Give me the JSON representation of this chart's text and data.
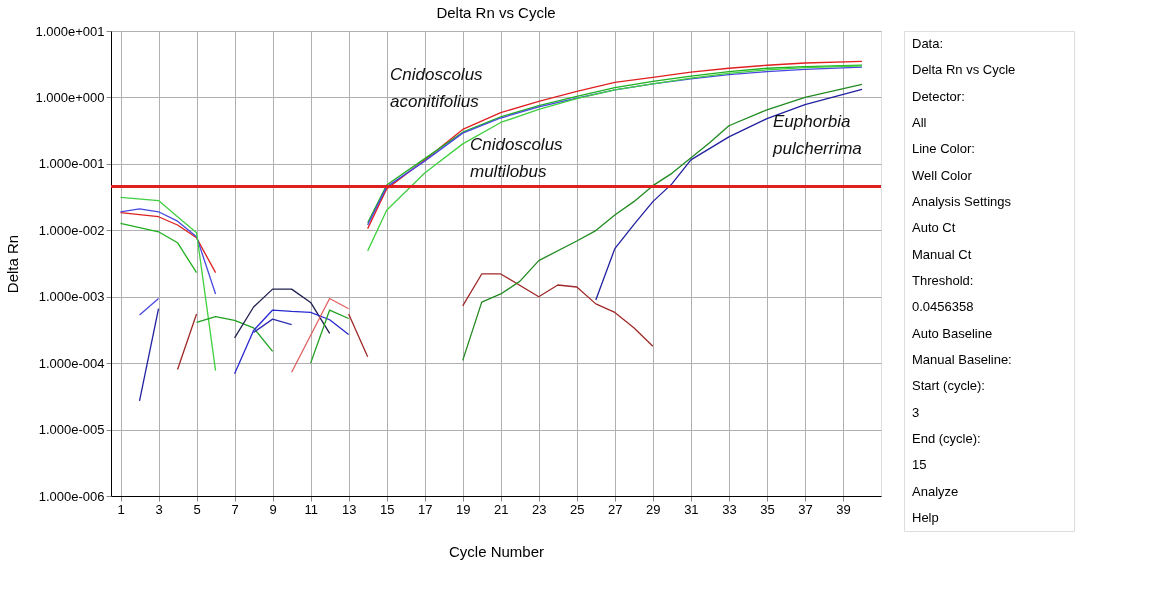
{
  "chart_data": [
    {
      "type": "line",
      "title": "Delta Rn vs Cycle",
      "xlabel": "Cycle Number",
      "ylabel": "Delta Rn",
      "log": "y",
      "grid": true,
      "legend": false,
      "marker": "none",
      "line_style": "solid",
      "xlim": [
        0.5,
        41
      ],
      "xticks": [
        1,
        3,
        5,
        7,
        9,
        11,
        13,
        15,
        17,
        19,
        21,
        23,
        25,
        27,
        29,
        31,
        33,
        35,
        37,
        39
      ],
      "ylim": [
        1e-06,
        10
      ],
      "yticks": [
        {
          "value": 10,
          "label": "1.000e+001"
        },
        {
          "value": 1,
          "label": "1.000e+000"
        },
        {
          "value": 0.1,
          "label": "1.000e-001"
        },
        {
          "value": 0.01,
          "label": "1.000e-002"
        },
        {
          "value": 0.001,
          "label": "1.000e-003"
        },
        {
          "value": 0.0001,
          "label": "1.000e-004"
        },
        {
          "value": 1e-05,
          "label": "1.000e-005"
        },
        {
          "value": 1e-06,
          "label": "1.000e-006"
        }
      ],
      "ref_lines": [
        {
          "axis": "y",
          "value": 0.0456358,
          "color": "#e02020"
        }
      ],
      "annotations": [
        "Cnidoscolus\naconitifolius",
        "Cnidoscolus\nmultilobus",
        "Euphorbia\npulcherrima"
      ],
      "series": [
        {
          "color": "#e02020",
          "x": [
            1,
            3,
            4,
            5,
            6
          ],
          "values": [
            0.0184,
            0.016,
            0.012,
            0.0077,
            0.0023
          ]
        },
        {
          "color": "#4848e0",
          "x": [
            1,
            2,
            3,
            4,
            5,
            6
          ],
          "values": [
            0.019,
            0.021,
            0.019,
            0.0137,
            0.008,
            0.0011
          ]
        },
        {
          "color": "#40d040",
          "x": [
            1,
            3,
            4,
            5,
            6
          ],
          "values": [
            0.0313,
            0.028,
            0.016,
            0.0092,
            7.7e-05
          ]
        },
        {
          "color": "#20b020",
          "x": [
            1,
            3,
            4,
            5
          ],
          "values": [
            0.0127,
            0.0095,
            0.0065,
            0.0023
          ]
        },
        {
          "color": "#4848e0",
          "x": [
            2,
            3
          ],
          "values": [
            0.00053,
            0.00094
          ]
        },
        {
          "color": "#2020a0",
          "x": [
            2,
            3
          ],
          "values": [
            2.7e-05,
            0.00066
          ]
        },
        {
          "color": "#a02828",
          "x": [
            4,
            5
          ],
          "values": [
            8e-05,
            0.00055
          ]
        },
        {
          "color": "#20a020",
          "x": [
            5,
            6,
            7,
            8,
            9
          ],
          "values": [
            0.00041,
            0.0005,
            0.00044,
            0.00034,
            0.00015
          ]
        },
        {
          "color": "#202050",
          "x": [
            7,
            8,
            9,
            10,
            11,
            12
          ],
          "values": [
            0.00024,
            0.0007,
            0.0013,
            0.0013,
            0.00082,
            0.00028
          ]
        },
        {
          "color": "#2828d0",
          "x": [
            7,
            8,
            9,
            10,
            11,
            12,
            13
          ],
          "values": [
            6.9e-05,
            0.00031,
            0.00063,
            0.0006,
            0.00058,
            0.00045,
            0.00027
          ]
        },
        {
          "color": "#3030b0",
          "x": [
            8,
            9,
            10
          ],
          "values": [
            0.00029,
            0.00046,
            0.00038
          ]
        },
        {
          "color": "#e06060",
          "x": [
            10,
            12,
            13
          ],
          "values": [
            7.3e-05,
            0.00094,
            0.00066
          ]
        },
        {
          "color": "#20a020",
          "x": [
            11,
            12,
            13
          ],
          "values": [
            0.0001,
            0.00063,
            0.00047
          ]
        },
        {
          "color": "#a02828",
          "x": [
            13,
            14
          ],
          "values": [
            0.00055,
            0.000125
          ]
        },
        {
          "color": "#e02020",
          "x": [
            14,
            15,
            17,
            19,
            21,
            23,
            25,
            27,
            29,
            31,
            33,
            35,
            37,
            40
          ],
          "values": [
            0.0106,
            0.042,
            0.114,
            0.33,
            0.59,
            0.87,
            1.23,
            1.68,
            2.0,
            2.4,
            2.75,
            3.05,
            3.3,
            3.5
          ]
        },
        {
          "color": "#20b020",
          "x": [
            14,
            15,
            17,
            19,
            21,
            23,
            25,
            27,
            29,
            31,
            33,
            35,
            37,
            40
          ],
          "values": [
            0.013,
            0.048,
            0.12,
            0.3,
            0.51,
            0.75,
            1.04,
            1.4,
            1.75,
            2.1,
            2.45,
            2.75,
            2.9,
            3.05
          ]
        },
        {
          "color": "#4848e0",
          "x": [
            14,
            15,
            17,
            19,
            21,
            23,
            25,
            27,
            29,
            31,
            33,
            35,
            37,
            40
          ],
          "values": [
            0.012,
            0.045,
            0.11,
            0.29,
            0.49,
            0.72,
            0.98,
            1.3,
            1.6,
            1.9,
            2.2,
            2.45,
            2.65,
            2.85
          ]
        },
        {
          "color": "#40d040",
          "x": [
            14,
            15,
            17,
            19,
            21,
            23,
            25,
            27,
            29,
            31,
            33,
            35,
            37,
            40
          ],
          "values": [
            0.0049,
            0.02,
            0.073,
            0.2,
            0.42,
            0.66,
            0.96,
            1.3,
            1.6,
            1.95,
            2.3,
            2.6,
            2.8,
            3.0
          ]
        },
        {
          "color": "#a02828",
          "x": [
            19,
            20,
            21,
            23,
            24,
            25,
            26,
            27,
            28,
            29
          ],
          "values": [
            0.00073,
            0.0022,
            0.0022,
            0.001,
            0.0015,
            0.0014,
            0.00078,
            0.00058,
            0.00034,
            0.00018
          ]
        },
        {
          "color": "#208a20",
          "x": [
            19,
            20,
            21,
            22,
            23,
            25,
            26,
            27,
            28,
            29,
            30,
            32,
            33,
            35,
            37,
            40
          ],
          "values": [
            0.00011,
            0.00083,
            0.0011,
            0.0017,
            0.0035,
            0.0069,
            0.0099,
            0.017,
            0.027,
            0.047,
            0.072,
            0.21,
            0.375,
            0.65,
            1.0,
            1.57
          ]
        },
        {
          "color": "#2020a0",
          "x": [
            26,
            27,
            28,
            29,
            30,
            31,
            33,
            35,
            37,
            40
          ],
          "values": [
            0.00089,
            0.0053,
            0.0122,
            0.027,
            0.05,
            0.115,
            0.255,
            0.48,
            0.78,
            1.32
          ]
        }
      ]
    },
    {
      "type": "other",
      "annotations": [
        "Data:",
        "Delta Rn vs Cycle",
        "Detector:",
        "All",
        "Line Color:",
        "Well Color",
        "Analysis Settings",
        "Auto Ct",
        "Manual Ct",
        "Threshold:",
        "0.0456358",
        "Auto Baseline",
        "Manual Baseline:",
        "Start (cycle):",
        "3",
        "End (cycle):",
        "15",
        "Analyze",
        "Help"
      ]
    }
  ]
}
